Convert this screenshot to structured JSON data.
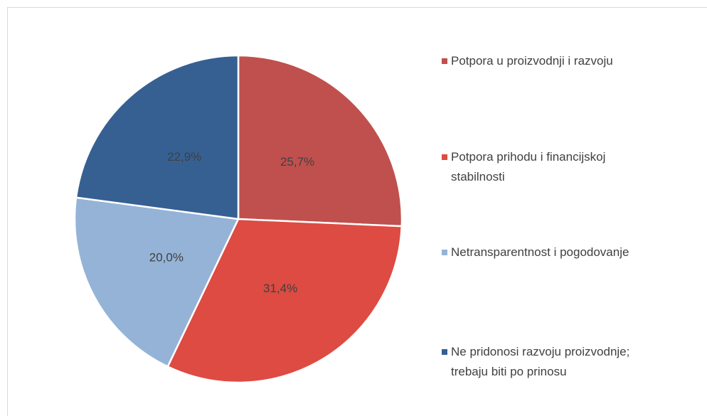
{
  "chart_data": {
    "type": "pie",
    "categories": [
      "Potpora u proizvodnji i razvoju",
      "Potpora prihodu i financijskoj stabilnosti",
      "Netransparentnost i pogodovanje",
      "Ne pridonosi razvoju proizvodnje; trebaju biti po prinosu"
    ],
    "values": [
      25.7,
      31.4,
      20.0,
      22.9
    ],
    "value_labels": [
      "25,7%",
      "31,4%",
      "20,0%",
      "22,9%"
    ],
    "colors": [
      "#c0504d",
      "#dd4b42",
      "#95b3d7",
      "#366092"
    ],
    "legend": "right"
  }
}
